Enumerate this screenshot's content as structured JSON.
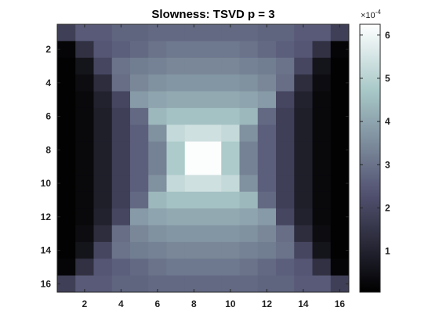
{
  "chart_data": {
    "type": "heatmap",
    "title": "Slowness: TSVD p = 3",
    "colormap": "bone",
    "x_ticks": [
      2,
      4,
      6,
      8,
      10,
      12,
      14,
      16
    ],
    "y_ticks": [
      2,
      4,
      6,
      8,
      10,
      12,
      14,
      16
    ],
    "xlim": [
      0.5,
      16.5
    ],
    "ylim": [
      0.5,
      16.5
    ],
    "y_reversed": true,
    "colorbar": {
      "ticks": [
        1,
        2,
        3,
        4,
        5,
        6
      ],
      "range": [
        0.05,
        6.25
      ],
      "exponent_label": "×10",
      "exponent_value": "-4",
      "placement": "right"
    },
    "grid": false,
    "z": [
      [
        1.8,
        2.5,
        2.5,
        2.7,
        2.7,
        2.8,
        2.8,
        2.8,
        2.8,
        2.8,
        2.8,
        2.7,
        2.7,
        2.5,
        2.5,
        1.8
      ],
      [
        0.2,
        1.4,
        2.4,
        2.6,
        2.8,
        3.0,
        3.1,
        3.1,
        3.1,
        3.1,
        3.0,
        2.8,
        2.6,
        2.4,
        1.4,
        0.2
      ],
      [
        0.1,
        0.6,
        2.0,
        3.0,
        3.2,
        3.3,
        3.4,
        3.4,
        3.4,
        3.4,
        3.3,
        3.2,
        3.0,
        2.0,
        0.6,
        0.1
      ],
      [
        0.1,
        0.4,
        1.3,
        2.9,
        3.4,
        3.6,
        3.7,
        3.7,
        3.7,
        3.7,
        3.6,
        3.4,
        2.9,
        1.3,
        0.4,
        0.1
      ],
      [
        0.1,
        0.3,
        1.0,
        2.0,
        3.8,
        4.0,
        4.1,
        4.1,
        4.1,
        4.1,
        4.0,
        3.8,
        2.0,
        1.0,
        0.3,
        0.1
      ],
      [
        0.1,
        0.3,
        0.9,
        1.8,
        2.8,
        4.4,
        4.6,
        4.6,
        4.6,
        4.6,
        4.4,
        2.8,
        1.8,
        0.9,
        0.3,
        0.1
      ],
      [
        0.1,
        0.3,
        0.9,
        1.8,
        2.6,
        3.6,
        5.2,
        5.4,
        5.4,
        5.2,
        3.6,
        2.6,
        1.8,
        0.9,
        0.3,
        0.1
      ],
      [
        0.1,
        0.3,
        0.9,
        1.8,
        2.6,
        3.3,
        4.8,
        6.2,
        6.2,
        4.8,
        3.3,
        2.6,
        1.8,
        0.9,
        0.3,
        0.1
      ],
      [
        0.1,
        0.3,
        0.9,
        1.8,
        2.6,
        3.3,
        4.8,
        6.2,
        6.2,
        4.8,
        3.3,
        2.6,
        1.8,
        0.9,
        0.3,
        0.1
      ],
      [
        0.1,
        0.3,
        0.9,
        1.8,
        2.6,
        3.6,
        5.2,
        5.4,
        5.4,
        5.2,
        3.6,
        2.6,
        1.8,
        0.9,
        0.3,
        0.1
      ],
      [
        0.1,
        0.3,
        0.9,
        1.8,
        2.8,
        4.4,
        4.6,
        4.6,
        4.6,
        4.6,
        4.4,
        2.8,
        1.8,
        0.9,
        0.3,
        0.1
      ],
      [
        0.1,
        0.3,
        1.0,
        2.0,
        3.8,
        4.0,
        4.1,
        4.1,
        4.1,
        4.1,
        4.0,
        3.8,
        2.0,
        1.0,
        0.3,
        0.1
      ],
      [
        0.1,
        0.4,
        1.3,
        2.9,
        3.4,
        3.6,
        3.7,
        3.7,
        3.7,
        3.7,
        3.6,
        3.4,
        2.9,
        1.3,
        0.4,
        0.1
      ],
      [
        0.1,
        0.6,
        2.0,
        3.0,
        3.2,
        3.3,
        3.4,
        3.4,
        3.4,
        3.4,
        3.3,
        3.2,
        3.0,
        2.0,
        0.6,
        0.1
      ],
      [
        0.2,
        1.4,
        2.4,
        2.6,
        2.8,
        3.0,
        3.1,
        3.1,
        3.1,
        3.1,
        3.0,
        2.8,
        2.6,
        2.4,
        1.4,
        0.2
      ],
      [
        1.8,
        2.5,
        2.5,
        2.7,
        2.7,
        2.8,
        2.8,
        2.8,
        2.8,
        2.8,
        2.8,
        2.7,
        2.7,
        2.5,
        2.5,
        1.8
      ]
    ]
  }
}
